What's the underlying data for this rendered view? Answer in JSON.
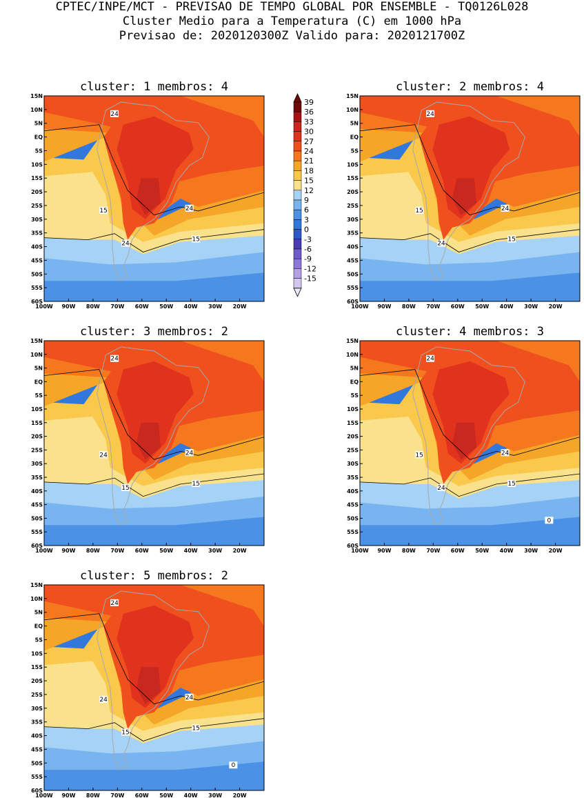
{
  "header": {
    "line1": "CPTEC/INPE/MCT - PREVISAO DE TEMPO GLOBAL POR ENSEMBLE - TQ0126L028",
    "line2": "Cluster Medio para a Temperatura (C) em 1000 hPa",
    "line3": "Previsao de: 2020120300Z   Valido para: 2020121700Z"
  },
  "axes": {
    "lat_labels": [
      "15N",
      "10N",
      "5N",
      "EQ",
      "5S",
      "10S",
      "15S",
      "20S",
      "25S",
      "30S",
      "35S",
      "40S",
      "45S",
      "50S",
      "55S",
      "60S"
    ],
    "lon_labels": [
      "100W",
      "90W",
      "80W",
      "70W",
      "60W",
      "50W",
      "40W",
      "30W",
      "20W"
    ]
  },
  "colorbar": {
    "levels": [
      "39",
      "36",
      "33",
      "30",
      "27",
      "24",
      "21",
      "18",
      "15",
      "12",
      "9",
      "6",
      "3",
      "0",
      "-3",
      "-6",
      "-9",
      "-12",
      "-15"
    ],
    "colors": [
      "#6e0a0a",
      "#a51414",
      "#c8281e",
      "#e1321e",
      "#f0501e",
      "#f5781e",
      "#f5a528",
      "#fac84b",
      "#fae18c",
      "#a5d2f5",
      "#78b4f0",
      "#4b91e6",
      "#3278dc",
      "#2d5ac8",
      "#4b3cb4",
      "#6e5ac8",
      "#8c78dc",
      "#b4a0e6",
      "#d2c8f0"
    ]
  },
  "clusters": [
    {
      "id": 1,
      "title": "cluster: 1   membros: 4",
      "labels": [
        "24",
        "24",
        "15",
        "24",
        "15"
      ]
    },
    {
      "id": 2,
      "title": "cluster: 2   membros: 4",
      "labels": [
        "24",
        "24",
        "15",
        "24",
        "15"
      ]
    },
    {
      "id": 3,
      "title": "cluster: 3   membros: 2",
      "labels": [
        "24",
        "24",
        "24",
        "15",
        "15"
      ]
    },
    {
      "id": 4,
      "title": "cluster: 4   membros: 3",
      "labels": [
        "24",
        "24",
        "15",
        "24",
        "15",
        "0"
      ]
    },
    {
      "id": 5,
      "title": "cluster: 5   membros: 2",
      "labels": [
        "24",
        "24",
        "24",
        "15",
        "15",
        "0"
      ]
    }
  ]
}
